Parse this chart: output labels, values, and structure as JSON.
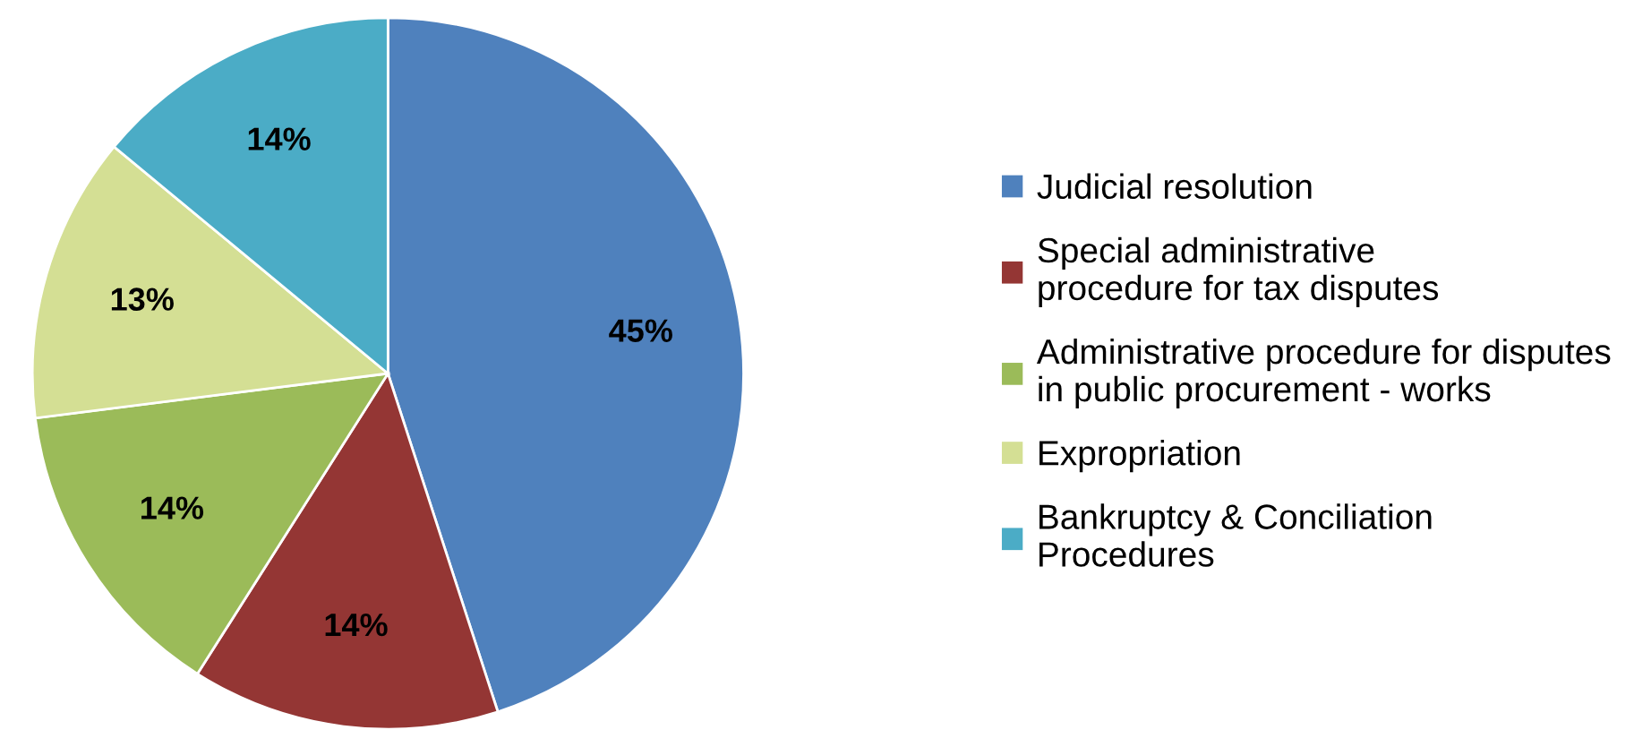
{
  "chart_data": {
    "type": "pie",
    "categories": [
      "Judicial resolution",
      "Special administrative\nprocedure for tax disputes",
      "Administrative procedure for disputes\nin public procurement - works",
      "Expropriation",
      "Bankruptcy & Conciliation\nProcedures"
    ],
    "values": [
      45,
      14,
      14,
      13,
      14
    ],
    "colors": [
      "#4f81bd",
      "#943634",
      "#9bbb59",
      "#d4df94",
      "#4bacc6"
    ],
    "value_labels": [
      "45%",
      "14%",
      "14%",
      "13%",
      "14%"
    ],
    "legend": "right"
  }
}
